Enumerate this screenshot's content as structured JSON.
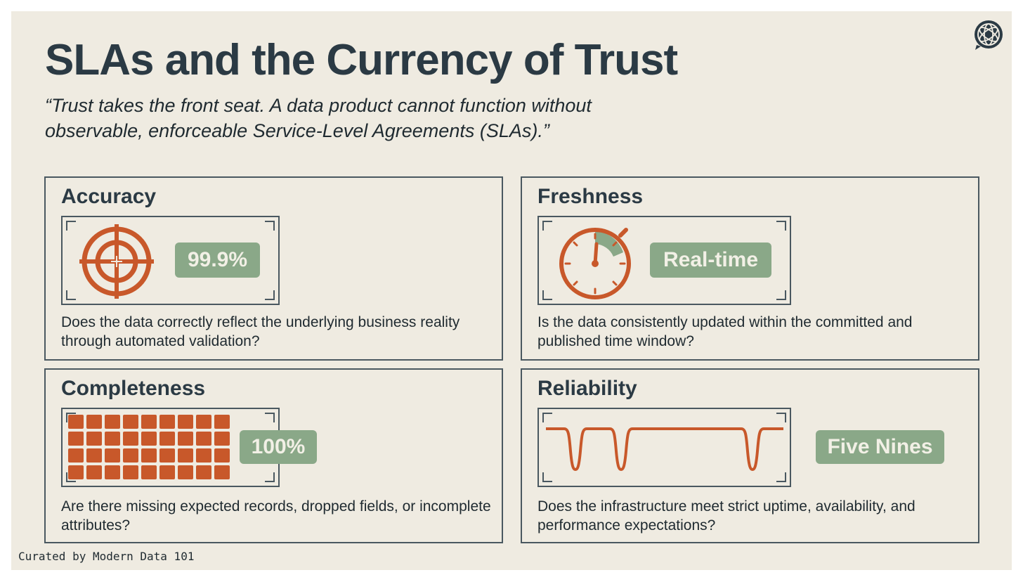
{
  "header": {
    "title": "SLAs and the Currency of Trust",
    "quote": "“Trust takes the front seat. A data product cannot function without observable, enforceable Service-Level Agreements (SLAs).”"
  },
  "logo": {
    "icon": "globe-chat-bubble-icon"
  },
  "cards": {
    "accuracy": {
      "title": "Accuracy",
      "icon": "target-crosshair-icon",
      "badge": "99.9%",
      "description": "Does the data correctly reflect the underlying business reality through automated validation?"
    },
    "freshness": {
      "title": "Freshness",
      "icon": "stopwatch-icon",
      "badge": "Real-time",
      "description": "Is the data consistently updated within the committed and published time window?"
    },
    "completeness": {
      "title": "Completeness",
      "icon": "filled-grid-icon",
      "badge": "100%",
      "description": "Are there missing expected records, dropped fields, or incomplete attributes?"
    },
    "reliability": {
      "title": "Reliability",
      "icon": "uptime-line-icon",
      "badge": "Five Nines",
      "description": "Does the infrastructure meet strict uptime, availability, and performance expectations?"
    }
  },
  "footer": {
    "credit": "Curated by Modern Data 101"
  },
  "colors": {
    "background": "#efebe1",
    "heading": "#2b3a44",
    "accent_orange": "#c8582a",
    "badge_green": "#8aa888",
    "border": "#4a5860"
  }
}
